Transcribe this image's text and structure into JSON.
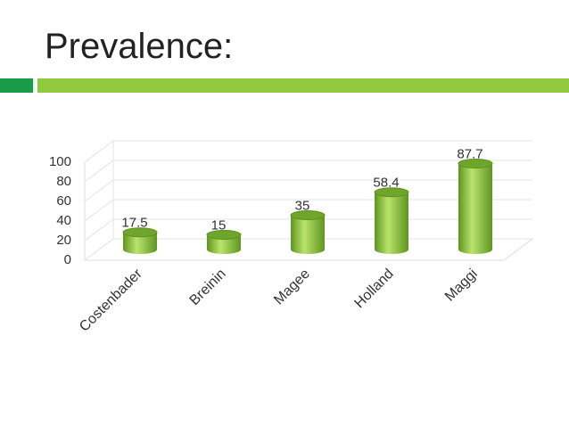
{
  "chart_data": {
    "type": "bar",
    "title": "Prevalence:",
    "categories": [
      "Costenbader",
      "Breinin",
      "Magee",
      "Holland",
      "Maggi"
    ],
    "values": [
      17.5,
      15,
      35,
      58.4,
      87.7
    ],
    "color": "#8cc63f",
    "ylim": [
      0,
      100
    ],
    "yticks": [
      0,
      20,
      40,
      60,
      80,
      100
    ],
    "grid": true
  }
}
